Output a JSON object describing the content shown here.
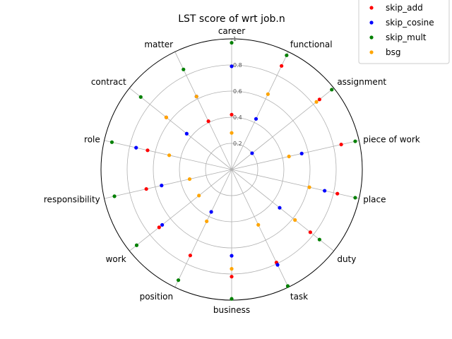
{
  "chart_data": {
    "type": "scatter",
    "subtype": "polar",
    "title": "LST score of wrt job.n",
    "categories": [
      "career",
      "functional",
      "assignment",
      "piece of work",
      "place",
      "duty",
      "task",
      "business",
      "position",
      "work",
      "responsibility",
      "role",
      "contract",
      "matter"
    ],
    "rlim": [
      0,
      1
    ],
    "rticks": [
      "0.2",
      "0.4",
      "0.6",
      "0.8",
      "1"
    ],
    "grid": true,
    "legend_position": "top-right",
    "series": [
      {
        "name": "skip_add",
        "color": "#ff0000",
        "values": [
          0.42,
          0.88,
          0.86,
          0.86,
          0.83,
          0.77,
          0.79,
          0.82,
          0.73,
          0.71,
          0.67,
          0.66,
          0.64,
          0.41
        ]
      },
      {
        "name": "skip_cosine",
        "color": "#0000ff",
        "values": [
          0.79,
          0.43,
          0.2,
          0.55,
          0.73,
          0.47,
          0.81,
          0.66,
          0.36,
          0.68,
          0.55,
          0.75,
          0.44,
          0.62
        ]
      },
      {
        "name": "skip_mult",
        "color": "#008000",
        "values": [
          0.97,
          0.97,
          0.98,
          0.97,
          0.97,
          0.86,
          0.99,
          0.99,
          0.94,
          0.93,
          0.92,
          0.94,
          0.89,
          0.85
        ]
      },
      {
        "name": "bsg",
        "color": "#ffa500",
        "values": [
          0.28,
          0.64,
          0.83,
          0.45,
          0.61,
          0.62,
          0.47,
          0.76,
          0.44,
          0.32,
          0.33,
          0.49,
          0.64,
          0.62
        ]
      }
    ]
  }
}
